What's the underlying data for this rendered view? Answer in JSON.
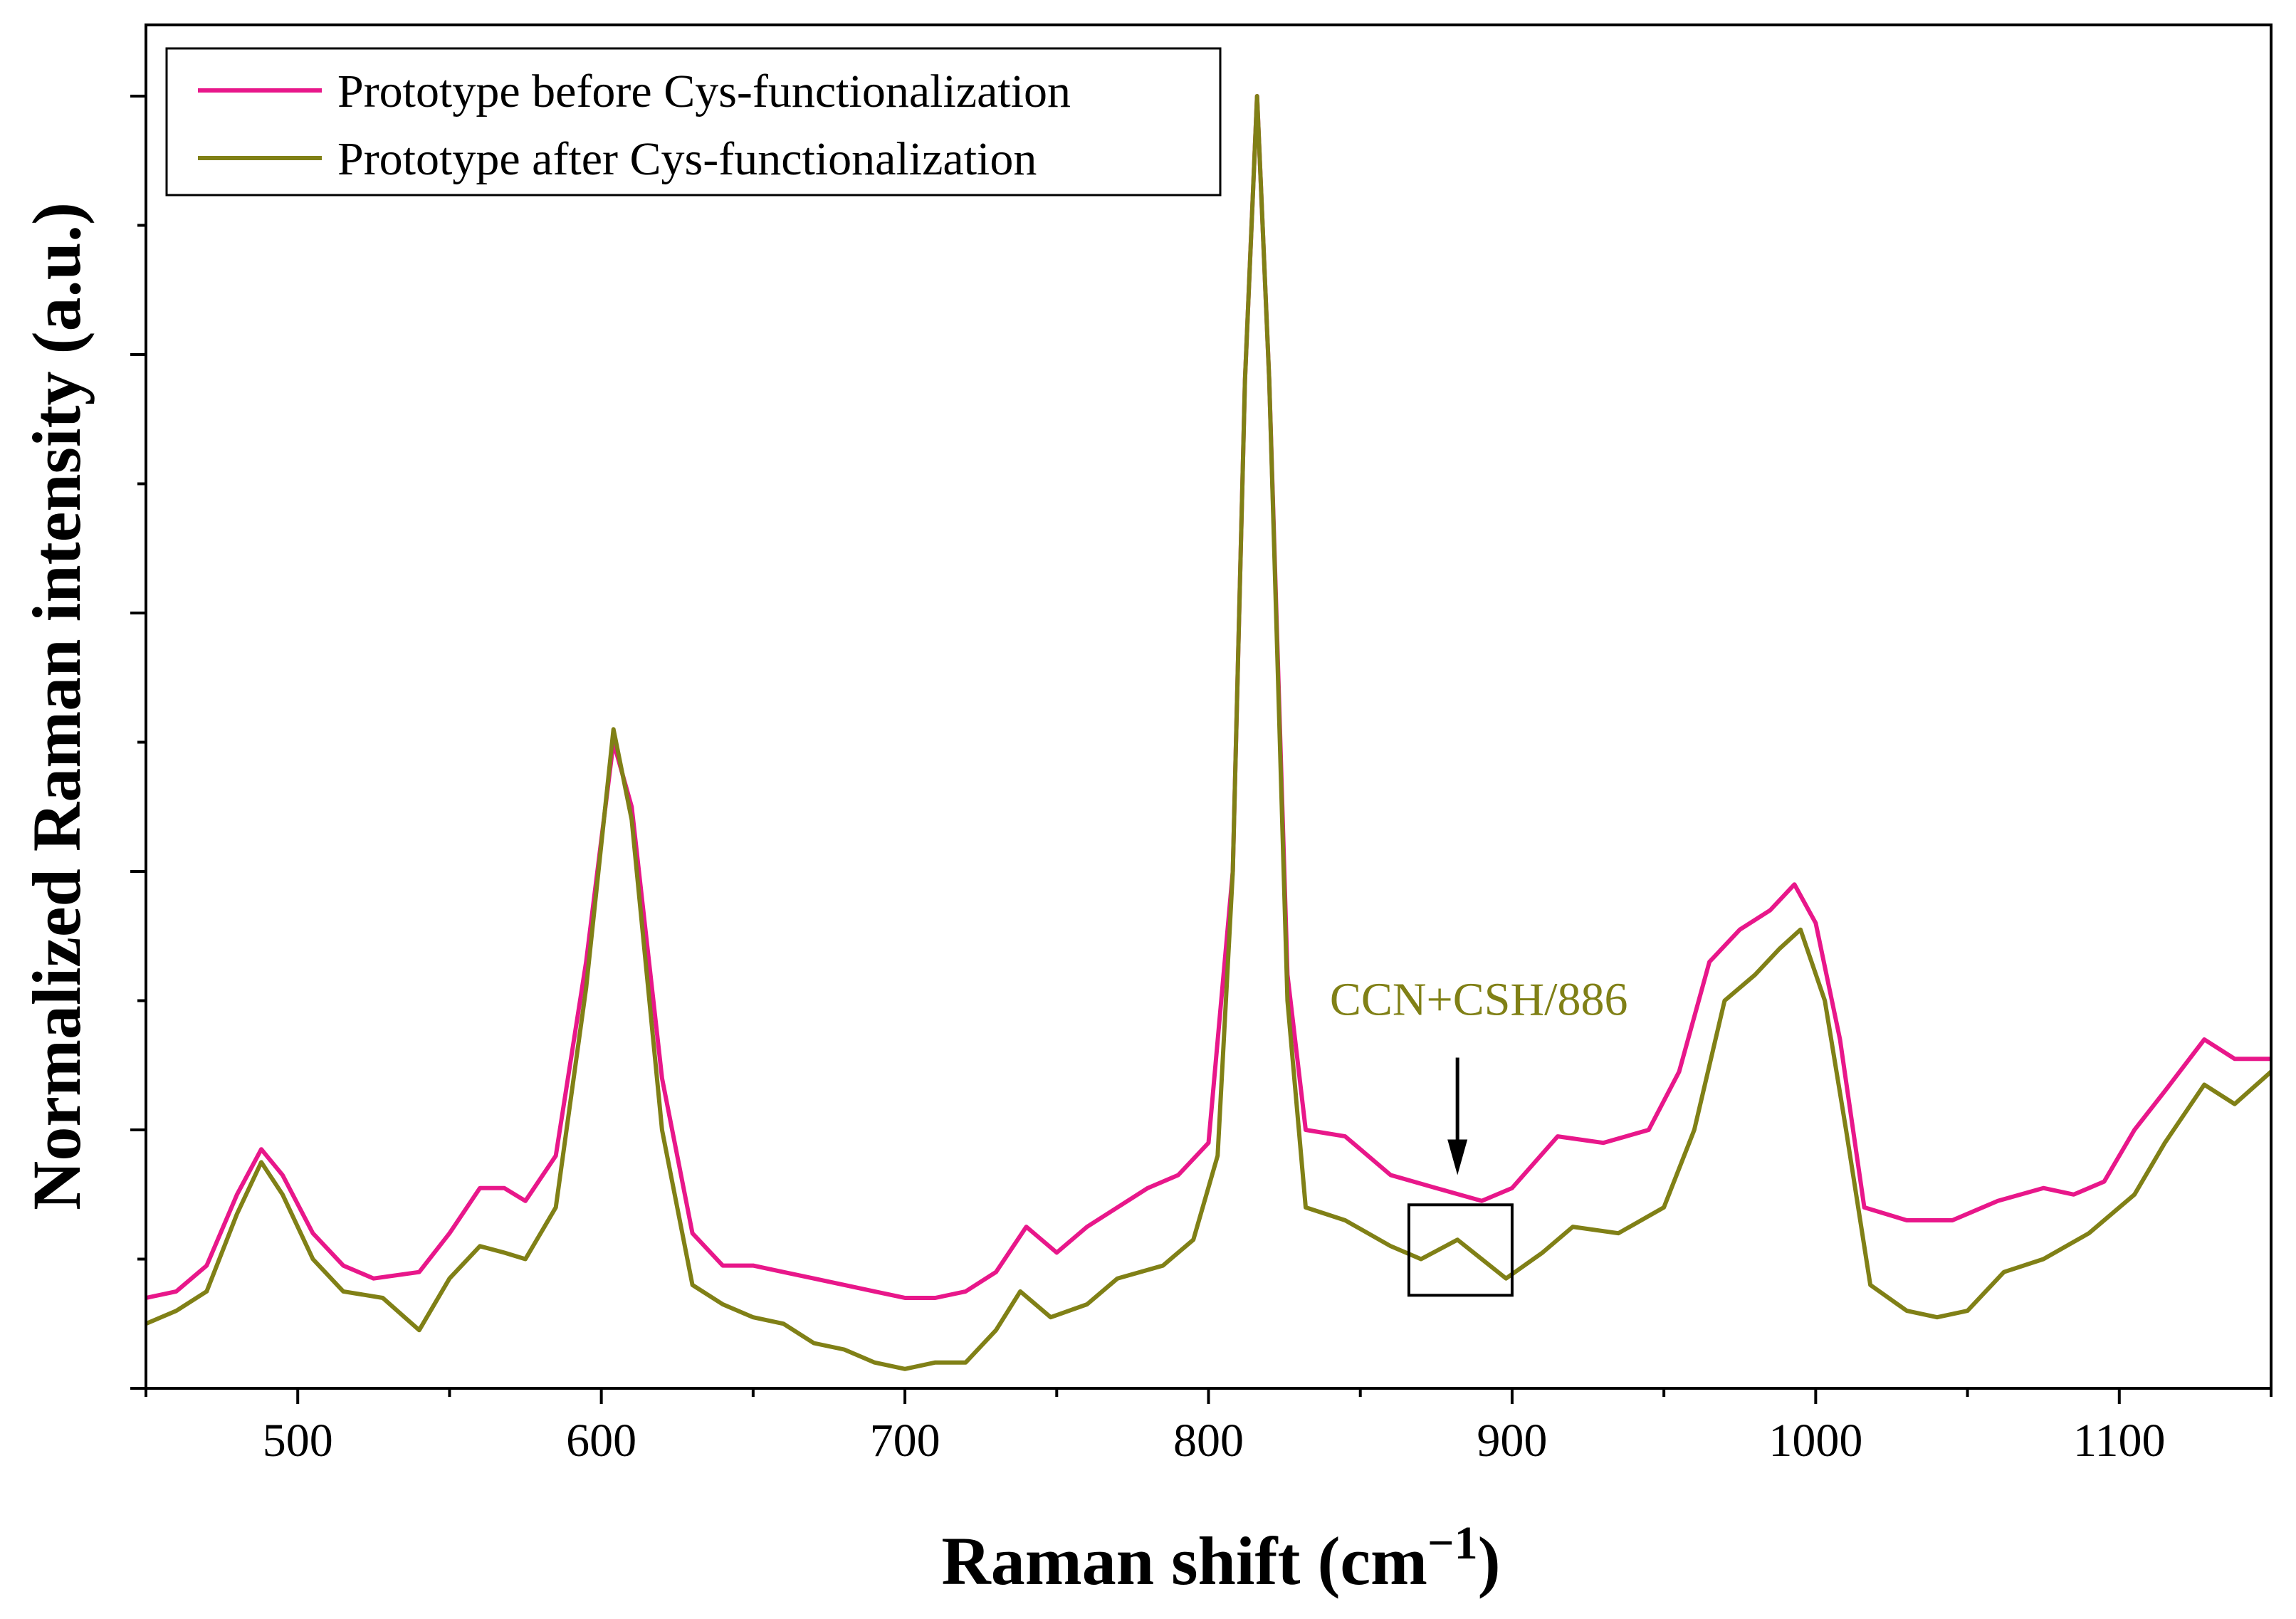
{
  "chart_data": {
    "type": "line",
    "xlabel": "Raman shift (cm",
    "xlabel_sup": "−1",
    "xlabel_close": ")",
    "ylabel": "Normalized Raman intensity (a.u.)",
    "xlim": [
      450,
      1150
    ],
    "ylim": [
      0,
      1.0
    ],
    "x_ticks": [
      500,
      600,
      700,
      800,
      900,
      1000,
      1100
    ],
    "x_tick_labels": [
      "500",
      "600",
      "700",
      "800",
      "900",
      "1000",
      "1100"
    ],
    "y_ticks_labeled": false,
    "legend_position": "top-left",
    "series": [
      {
        "name": "Prototype before Cys-functionalization",
        "color": "#e8178a",
        "points": [
          [
            450,
            0.07
          ],
          [
            460,
            0.075
          ],
          [
            470,
            0.095
          ],
          [
            480,
            0.15
          ],
          [
            488,
            0.185
          ],
          [
            495,
            0.165
          ],
          [
            505,
            0.12
          ],
          [
            515,
            0.095
          ],
          [
            525,
            0.085
          ],
          [
            540,
            0.09
          ],
          [
            550,
            0.12
          ],
          [
            560,
            0.155
          ],
          [
            568,
            0.155
          ],
          [
            575,
            0.145
          ],
          [
            585,
            0.18
          ],
          [
            595,
            0.33
          ],
          [
            604,
            0.5
          ],
          [
            610,
            0.45
          ],
          [
            620,
            0.24
          ],
          [
            630,
            0.12
          ],
          [
            640,
            0.095
          ],
          [
            650,
            0.095
          ],
          [
            660,
            0.09
          ],
          [
            670,
            0.085
          ],
          [
            680,
            0.08
          ],
          [
            690,
            0.075
          ],
          [
            700,
            0.07
          ],
          [
            710,
            0.07
          ],
          [
            720,
            0.075
          ],
          [
            730,
            0.09
          ],
          [
            740,
            0.125
          ],
          [
            750,
            0.105
          ],
          [
            760,
            0.125
          ],
          [
            770,
            0.14
          ],
          [
            780,
            0.155
          ],
          [
            790,
            0.165
          ],
          [
            800,
            0.19
          ],
          [
            808,
            0.4
          ],
          [
            812,
            0.78
          ],
          [
            816,
            1.0
          ],
          [
            820,
            0.78
          ],
          [
            826,
            0.32
          ],
          [
            832,
            0.2
          ],
          [
            845,
            0.195
          ],
          [
            860,
            0.165
          ],
          [
            875,
            0.155
          ],
          [
            890,
            0.145
          ],
          [
            900,
            0.155
          ],
          [
            915,
            0.195
          ],
          [
            930,
            0.19
          ],
          [
            945,
            0.2
          ],
          [
            955,
            0.245
          ],
          [
            965,
            0.33
          ],
          [
            975,
            0.355
          ],
          [
            985,
            0.37
          ],
          [
            993,
            0.39
          ],
          [
            1000,
            0.36
          ],
          [
            1008,
            0.27
          ],
          [
            1016,
            0.14
          ],
          [
            1030,
            0.13
          ],
          [
            1045,
            0.13
          ],
          [
            1060,
            0.145
          ],
          [
            1075,
            0.155
          ],
          [
            1085,
            0.15
          ],
          [
            1095,
            0.16
          ],
          [
            1105,
            0.2
          ],
          [
            1115,
            0.23
          ],
          [
            1128,
            0.27
          ],
          [
            1138,
            0.255
          ],
          [
            1150,
            0.255
          ]
        ]
      },
      {
        "name": "Prototype after Cys-functionalization",
        "color": "#808016",
        "points": [
          [
            450,
            0.05
          ],
          [
            460,
            0.06
          ],
          [
            470,
            0.075
          ],
          [
            480,
            0.135
          ],
          [
            488,
            0.175
          ],
          [
            495,
            0.15
          ],
          [
            505,
            0.1
          ],
          [
            515,
            0.075
          ],
          [
            528,
            0.07
          ],
          [
            540,
            0.045
          ],
          [
            550,
            0.085
          ],
          [
            560,
            0.11
          ],
          [
            568,
            0.105
          ],
          [
            575,
            0.1
          ],
          [
            585,
            0.14
          ],
          [
            595,
            0.31
          ],
          [
            604,
            0.51
          ],
          [
            610,
            0.44
          ],
          [
            620,
            0.2
          ],
          [
            630,
            0.08
          ],
          [
            640,
            0.065
          ],
          [
            650,
            0.055
          ],
          [
            660,
            0.05
          ],
          [
            670,
            0.035
          ],
          [
            680,
            0.03
          ],
          [
            690,
            0.02
          ],
          [
            700,
            0.015
          ],
          [
            710,
            0.02
          ],
          [
            720,
            0.02
          ],
          [
            730,
            0.045
          ],
          [
            738,
            0.075
          ],
          [
            748,
            0.055
          ],
          [
            760,
            0.065
          ],
          [
            770,
            0.085
          ],
          [
            785,
            0.095
          ],
          [
            795,
            0.115
          ],
          [
            803,
            0.18
          ],
          [
            808,
            0.4
          ],
          [
            812,
            0.78
          ],
          [
            816,
            1.0
          ],
          [
            820,
            0.78
          ],
          [
            826,
            0.3
          ],
          [
            832,
            0.14
          ],
          [
            845,
            0.13
          ],
          [
            860,
            0.11
          ],
          [
            870,
            0.1
          ],
          [
            882,
            0.115
          ],
          [
            890,
            0.1
          ],
          [
            898,
            0.085
          ],
          [
            910,
            0.105
          ],
          [
            920,
            0.125
          ],
          [
            935,
            0.12
          ],
          [
            950,
            0.14
          ],
          [
            960,
            0.2
          ],
          [
            970,
            0.3
          ],
          [
            980,
            0.32
          ],
          [
            988,
            0.34
          ],
          [
            995,
            0.355
          ],
          [
            1003,
            0.3
          ],
          [
            1010,
            0.2
          ],
          [
            1018,
            0.08
          ],
          [
            1030,
            0.06
          ],
          [
            1040,
            0.055
          ],
          [
            1050,
            0.06
          ],
          [
            1062,
            0.09
          ],
          [
            1075,
            0.1
          ],
          [
            1090,
            0.12
          ],
          [
            1105,
            0.15
          ],
          [
            1115,
            0.19
          ],
          [
            1128,
            0.235
          ],
          [
            1138,
            0.22
          ],
          [
            1150,
            0.245
          ]
        ]
      }
    ],
    "annotation": {
      "text": "CCN+CSH/886",
      "color": "#808016",
      "arrow_target": [
        882,
        0.165
      ],
      "box_x": [
        866,
        900
      ],
      "box_y": [
        0.072,
        0.142
      ]
    }
  }
}
